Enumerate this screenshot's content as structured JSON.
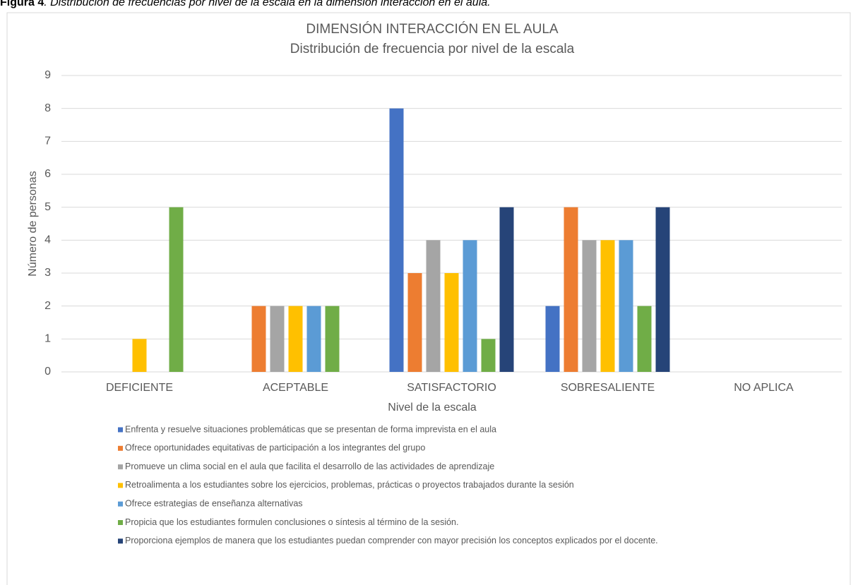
{
  "chart_data": {
    "type": "bar",
    "caption_label": "Figura 4",
    "caption_text": ". Distribución de frecuencias por nivel de la escala en la dimensión interacción en el aula.",
    "title": "DIMENSIÓN INTERACCIÓN EN EL AULA",
    "subtitle": "Distribución de frecuencia por nivel de la escala",
    "x_label": "Nivel de la escala",
    "y_label": "Número de personas",
    "categories": [
      "DEFICIENTE",
      "ACEPTABLE",
      "SATISFACTORIO",
      "SOBRESALIENTE",
      "NO APLICA"
    ],
    "series": [
      {
        "name": "Enfrenta y resuelve situaciones problemáticas que se presentan de forma imprevista en el aula",
        "color": "#4472c4",
        "values": [
          0,
          0,
          8,
          2,
          0
        ]
      },
      {
        "name": "Ofrece oportunidades equitativas de participación a los integrantes del grupo",
        "color": "#ed7d31",
        "values": [
          0,
          2,
          3,
          5,
          0
        ]
      },
      {
        "name": "Promueve un clima social en el aula que facilita el desarrollo de las actividades de aprendizaje",
        "color": "#a5a5a5",
        "values": [
          0,
          2,
          4,
          4,
          0
        ]
      },
      {
        "name": "Retroalimenta a los estudiantes sobre los ejercicios, problemas, prácticas o proyectos trabajados durante la sesión",
        "color": "#ffc000",
        "values": [
          1,
          2,
          3,
          4,
          0
        ]
      },
      {
        "name": "Ofrece estrategias de enseñanza alternativas",
        "color": "#5b9bd5",
        "values": [
          0,
          2,
          4,
          4,
          0
        ]
      },
      {
        "name": "Propicia que los estudiantes formulen conclusiones o síntesis al término de la sesión.",
        "color": "#70ad47",
        "values": [
          5,
          2,
          1,
          2,
          0
        ]
      },
      {
        "name": "Proporciona ejemplos de manera que los estudiantes puedan comprender con mayor precisión los conceptos explicados por el docente.",
        "color": "#264478",
        "values": [
          0,
          0,
          5,
          5,
          0
        ]
      }
    ],
    "ylim": [
      0,
      9
    ],
    "yticks": [
      0,
      1,
      2,
      3,
      4,
      5,
      6,
      7,
      8,
      9
    ],
    "grid": true,
    "legend": "bottom"
  }
}
